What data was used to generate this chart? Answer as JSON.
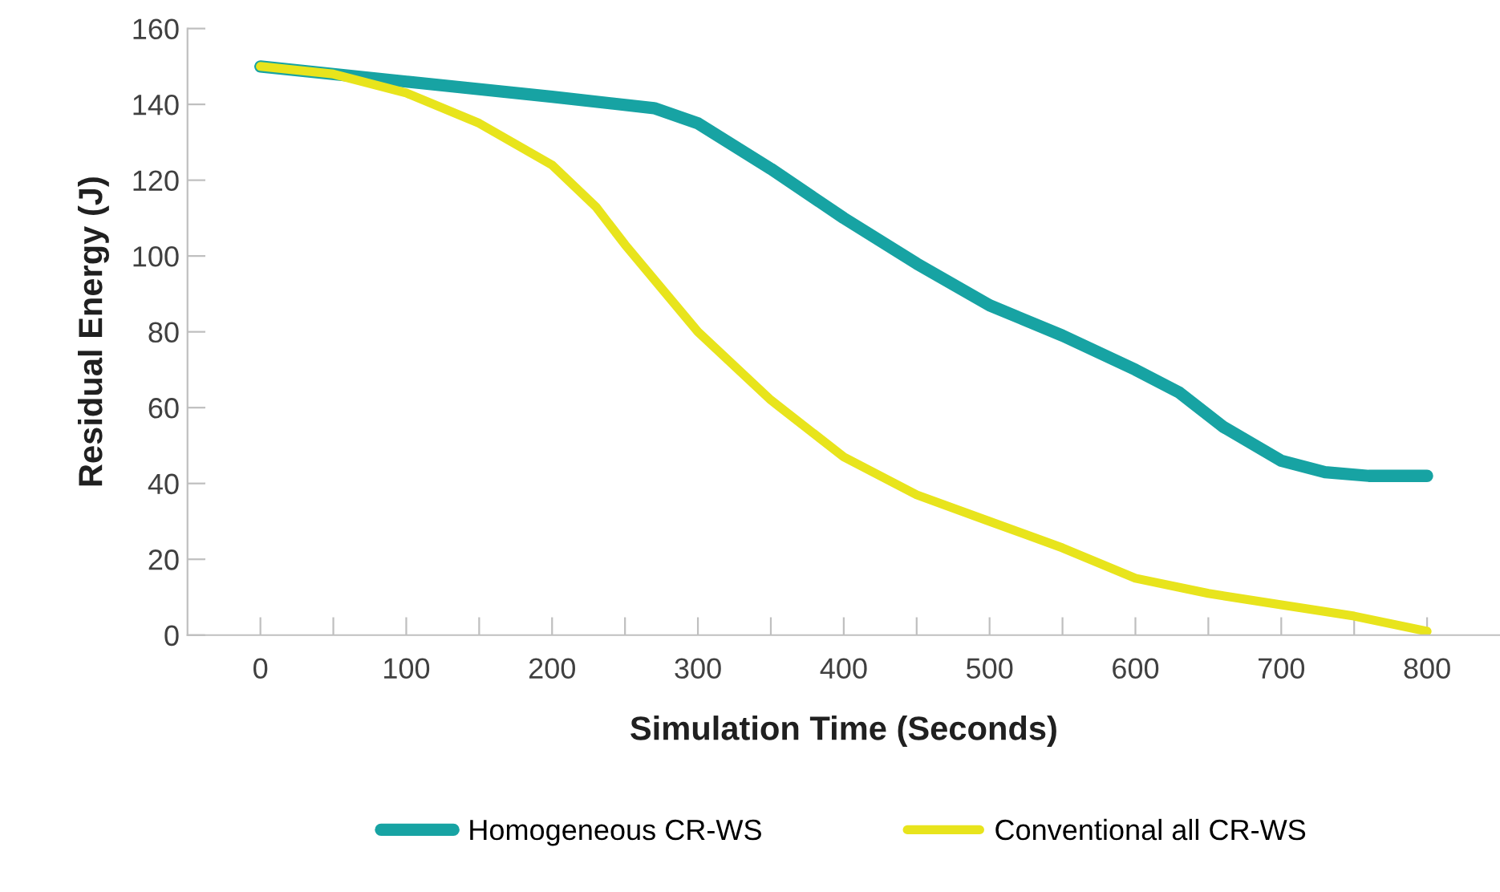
{
  "chart_data": {
    "type": "line",
    "xlabel": "Simulation Time (Seconds)",
    "ylabel": "Residual Energy (J)",
    "xlim": [
      -50,
      850
    ],
    "ylim": [
      0,
      160
    ],
    "xticks": [
      0,
      {
        "value": 50,
        "label": null
      },
      100,
      {
        "value": 150,
        "label": null
      },
      200,
      {
        "value": 250,
        "label": null
      },
      300,
      {
        "value": 350,
        "label": null
      },
      400,
      {
        "value": 450,
        "label": null
      },
      500,
      {
        "value": 550,
        "label": null
      },
      600,
      {
        "value": 650,
        "label": null
      },
      700,
      {
        "value": 750,
        "label": null
      },
      800
    ],
    "yticks": [
      0,
      20,
      40,
      60,
      80,
      100,
      120,
      140,
      160
    ],
    "grid": false,
    "legend": "bottom",
    "marker": "none",
    "line_style": "solid",
    "series": [
      {
        "name": "Homogeneous CR-WS",
        "color": "#17a3a3",
        "x": [
          0,
          100,
          200,
          270,
          300,
          350,
          400,
          450,
          500,
          550,
          600,
          630,
          660,
          700,
          730,
          760,
          800
        ],
        "values": [
          150,
          146,
          142,
          139,
          135,
          123,
          110,
          98,
          87,
          79,
          70,
          64,
          55,
          46,
          43,
          42,
          42
        ]
      },
      {
        "name": "Conventional all CR-WS",
        "color": "#e8e41c",
        "x": [
          0,
          50,
          100,
          150,
          200,
          230,
          250,
          300,
          350,
          400,
          450,
          500,
          550,
          600,
          650,
          700,
          750,
          800
        ],
        "values": [
          150,
          148,
          143,
          135,
          124,
          113,
          103,
          80,
          62,
          47,
          37,
          30,
          23,
          15,
          11,
          8,
          5,
          1
        ]
      }
    ]
  }
}
